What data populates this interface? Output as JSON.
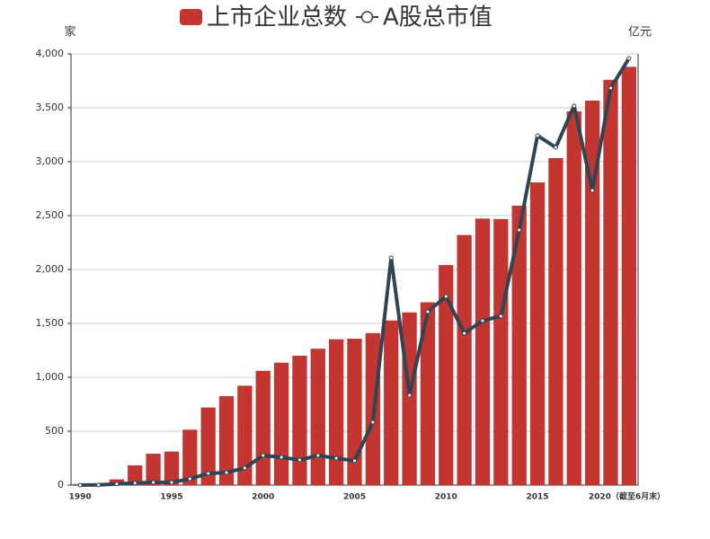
{
  "chart_data": {
    "type": "bar_line",
    "legend_position": "top",
    "y_axis_name": "家",
    "y2_axis_name": "亿元",
    "categories": [
      "1990",
      null,
      null,
      null,
      null,
      "1995",
      null,
      null,
      null,
      null,
      "2000",
      null,
      null,
      null,
      null,
      "2005",
      null,
      null,
      null,
      null,
      "2010",
      null,
      null,
      null,
      null,
      "2015",
      null,
      null,
      null,
      null,
      "2020（截至6月末）"
    ],
    "series": [
      {
        "name": "上市企业总数",
        "type": "bar",
        "color": "#c23531",
        "values": [
          10,
          14,
          53,
          183,
          291,
          311,
          514,
          720,
          825,
          922,
          1060,
          1136,
          1200,
          1265,
          1353,
          1358,
          1410,
          1527,
          1602,
          1696,
          2041,
          2320,
          2472,
          2468,
          2592,
          2808,
          3034,
          3467,
          3567,
          3760,
          3880
        ]
      },
      {
        "name": "A股总市值",
        "type": "line",
        "axis": "y2",
        "color": "#2f4554",
        "values": [
          0,
          2,
          10,
          20,
          25,
          25,
          58,
          108,
          117,
          158,
          275,
          258,
          233,
          275,
          250,
          225,
          583,
          2108,
          833,
          1608,
          1750,
          1408,
          1525,
          1567,
          2367,
          3242,
          3133,
          3517,
          2733,
          3683,
          3958
        ]
      }
    ],
    "ylim": [
      0,
      4000
    ],
    "yticks": [
      0,
      500,
      {
        "value": 1000,
        "label": "1,000"
      },
      {
        "value": 1500,
        "label": "1,500"
      },
      {
        "value": 2000,
        "label": "2,000"
      },
      {
        "value": 2500,
        "label": "2,500"
      },
      {
        "value": 3000,
        "label": "3,000"
      },
      {
        "value": 3500,
        "label": "3,500"
      },
      {
        "value": 4000,
        "label": "4,000"
      }
    ],
    "y2lim": [
      0,
      4000
    ],
    "grid": true
  }
}
